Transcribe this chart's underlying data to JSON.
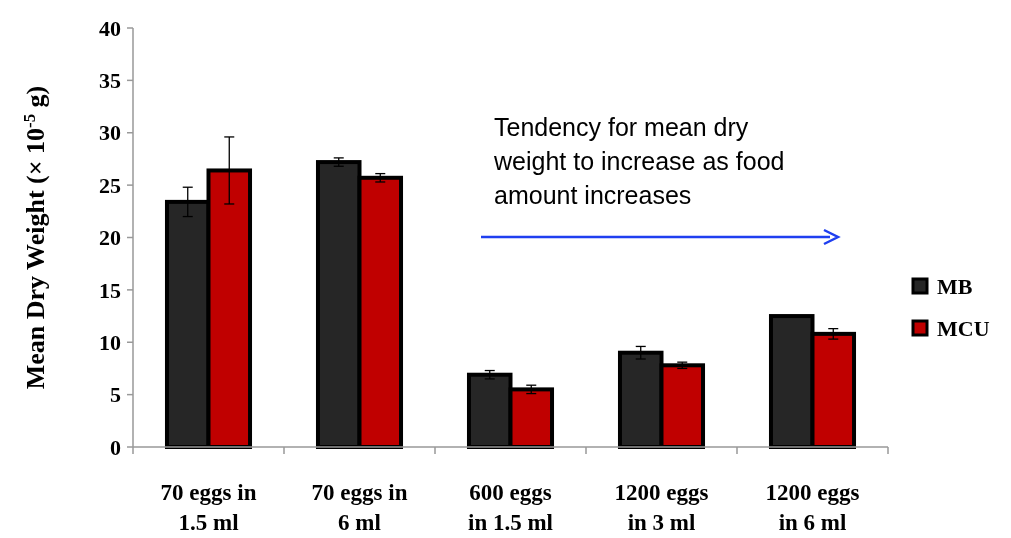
{
  "chart_data": {
    "type": "bar",
    "ylabel": "Mean Dry Weight (× 10$^{-5}$ g)",
    "categories": [
      "70 eggs in\n1.5 ml",
      "70 eggs in\n6 ml",
      "600 eggs\nin 1.5 ml",
      "1200 eggs\nin 3 ml",
      "1200 eggs\nin 6 ml"
    ],
    "series": [
      {
        "name": "MB",
        "color": "#262626",
        "values": [
          23.4,
          27.2,
          6.9,
          9.0,
          12.5
        ],
        "errors": [
          1.4,
          0.4,
          0.4,
          0.6,
          null
        ]
      },
      {
        "name": "MCU",
        "color": "#c00000",
        "values": [
          26.4,
          25.7,
          5.5,
          7.8,
          10.8
        ],
        "errors": [
          3.2,
          0.4,
          0.4,
          0.3,
          0.5
        ]
      }
    ],
    "ylim": [
      0,
      40
    ],
    "yticks": [
      0,
      5,
      10,
      15,
      20,
      25,
      30,
      35,
      40
    ],
    "grid": false,
    "legend": "right",
    "annotations": [
      "Tendency for mean dry weight to increase as food amount increases"
    ]
  }
}
